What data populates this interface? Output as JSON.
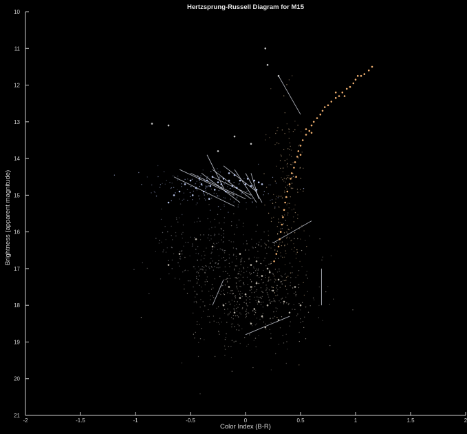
{
  "chart_data": {
    "type": "scatter",
    "title": "Hertzsprung-Russell Diagram for M15",
    "xlabel": "Color Index (B-R)",
    "ylabel": "Brightness (apparent magnitude)",
    "xlim": [
      -2,
      2
    ],
    "ylim": [
      21,
      10
    ],
    "y_inverted": true,
    "x_ticks": [
      "-2",
      "-1.5",
      "-1",
      "-0.5",
      "0",
      "0.5",
      "1",
      "1.5",
      "2"
    ],
    "y_ticks": [
      "10",
      "11",
      "12",
      "13",
      "14",
      "15",
      "16",
      "17",
      "18",
      "19",
      "20",
      "21"
    ],
    "grid": false,
    "colors": {
      "background": "#000000",
      "axis": "#d0d0d0",
      "blue_stars": "#b8c4ea",
      "red_giants": "#f0b070",
      "main_sequence": "#b8b2a8"
    },
    "series": [
      {
        "key": "horizontal_branch",
        "color": "#b8c4ea",
        "points": [
          [
            -0.55,
            14.7
          ],
          [
            -0.5,
            14.6
          ],
          [
            -0.45,
            14.8
          ],
          [
            -0.42,
            14.55
          ],
          [
            -0.4,
            14.7
          ],
          [
            -0.38,
            14.9
          ],
          [
            -0.35,
            14.6
          ],
          [
            -0.32,
            14.75
          ],
          [
            -0.3,
            14.5
          ],
          [
            -0.28,
            14.85
          ],
          [
            -0.25,
            14.65
          ],
          [
            -0.22,
            14.7
          ],
          [
            -0.2,
            14.55
          ],
          [
            -0.18,
            14.9
          ],
          [
            -0.15,
            14.6
          ],
          [
            -0.12,
            14.75
          ],
          [
            -0.1,
            14.45
          ],
          [
            -0.08,
            14.8
          ],
          [
            -0.05,
            14.6
          ],
          [
            0.0,
            14.7
          ],
          [
            0.02,
            14.55
          ],
          [
            0.05,
            14.75
          ],
          [
            0.08,
            14.6
          ],
          [
            0.1,
            14.85
          ],
          [
            -0.6,
            14.9
          ],
          [
            -0.65,
            15.0
          ],
          [
            -0.7,
            15.2
          ],
          [
            -0.48,
            15.0
          ],
          [
            -0.33,
            15.1
          ],
          [
            0.12,
            14.65
          ],
          [
            -0.15,
            14.4
          ],
          [
            0.15,
            14.7
          ]
        ]
      },
      {
        "key": "red_giant_branch",
        "color": "#f0b070",
        "points": [
          [
            1.15,
            11.5
          ],
          [
            1.12,
            11.6
          ],
          [
            1.08,
            11.7
          ],
          [
            1.05,
            11.75
          ],
          [
            1.0,
            11.85
          ],
          [
            0.98,
            11.95
          ],
          [
            0.95,
            12.05
          ],
          [
            0.92,
            12.1
          ],
          [
            0.88,
            12.2
          ],
          [
            0.85,
            12.3
          ],
          [
            0.82,
            12.35
          ],
          [
            0.78,
            12.45
          ],
          [
            0.75,
            12.55
          ],
          [
            0.72,
            12.6
          ],
          [
            0.7,
            12.7
          ],
          [
            0.68,
            12.8
          ],
          [
            0.65,
            12.9
          ],
          [
            0.62,
            13.0
          ],
          [
            0.6,
            13.1
          ],
          [
            0.58,
            13.25
          ],
          [
            0.55,
            13.35
          ],
          [
            0.52,
            13.5
          ],
          [
            0.5,
            13.65
          ],
          [
            0.48,
            13.8
          ],
          [
            0.47,
            13.95
          ],
          [
            0.45,
            14.1
          ],
          [
            0.44,
            14.25
          ],
          [
            0.42,
            14.4
          ],
          [
            0.41,
            14.55
          ],
          [
            0.4,
            14.7
          ],
          [
            0.38,
            14.9
          ],
          [
            0.37,
            15.05
          ],
          [
            0.36,
            15.2
          ],
          [
            0.35,
            15.4
          ],
          [
            0.34,
            15.6
          ],
          [
            0.33,
            15.8
          ],
          [
            0.32,
            16.0
          ],
          [
            0.31,
            16.2
          ],
          [
            0.3,
            16.4
          ],
          [
            0.28,
            16.6
          ],
          [
            0.26,
            16.8
          ],
          [
            0.82,
            12.2
          ],
          [
            0.9,
            12.3
          ],
          [
            1.02,
            11.75
          ],
          [
            0.6,
            13.3
          ],
          [
            0.55,
            13.2
          ],
          [
            0.5,
            13.9
          ],
          [
            0.46,
            14.5
          ]
        ]
      },
      {
        "key": "main_sequence",
        "color": "#b8b2a8",
        "points": [
          [
            0.2,
            17.0
          ],
          [
            0.15,
            17.2
          ],
          [
            0.1,
            17.4
          ],
          [
            0.05,
            17.5
          ],
          [
            0.0,
            17.7
          ],
          [
            -0.05,
            17.8
          ],
          [
            0.12,
            17.9
          ],
          [
            0.2,
            18.0
          ],
          [
            0.25,
            17.6
          ],
          [
            0.3,
            17.3
          ],
          [
            0.08,
            18.1
          ],
          [
            -0.1,
            18.2
          ],
          [
            0.15,
            18.3
          ],
          [
            0.3,
            18.4
          ],
          [
            0.05,
            18.5
          ],
          [
            -0.2,
            18.0
          ],
          [
            0.35,
            17.9
          ],
          [
            0.4,
            18.2
          ],
          [
            0.18,
            18.6
          ],
          [
            -0.15,
            17.5
          ],
          [
            0.22,
            17.1
          ],
          [
            0.05,
            16.9
          ],
          [
            -0.05,
            16.6
          ],
          [
            -0.3,
            16.4
          ],
          [
            -0.45,
            16.2
          ],
          [
            -0.6,
            16.6
          ],
          [
            -0.7,
            16.9
          ],
          [
            0.45,
            17.5
          ],
          [
            0.5,
            18.0
          ],
          [
            0.1,
            16.8
          ]
        ]
      },
      {
        "key": "blue_stragglers",
        "color": "#c8c8c8",
        "points": [
          [
            0.18,
            11.0
          ],
          [
            0.2,
            11.45
          ],
          [
            0.3,
            11.75
          ],
          [
            0.05,
            13.6
          ],
          [
            -0.85,
            13.05
          ],
          [
            -0.7,
            13.1
          ],
          [
            -0.25,
            13.8
          ],
          [
            -0.1,
            13.4
          ]
        ]
      }
    ],
    "streaks": [
      [
        [
          0.3,
          11.75
        ],
        [
          0.5,
          12.8
        ]
      ],
      [
        [
          -0.6,
          14.3
        ],
        [
          -0.1,
          15.0
        ]
      ],
      [
        [
          -0.5,
          14.4
        ],
        [
          0.0,
          15.1
        ]
      ],
      [
        [
          -0.4,
          14.4
        ],
        [
          -0.05,
          15.2
        ]
      ],
      [
        [
          -0.35,
          13.9
        ],
        [
          -0.2,
          14.8
        ]
      ],
      [
        [
          -0.3,
          14.5
        ],
        [
          0.05,
          15.0
        ]
      ],
      [
        [
          -0.3,
          14.3
        ],
        [
          0.05,
          15.1
        ]
      ],
      [
        [
          -0.2,
          14.2
        ],
        [
          0.1,
          14.9
        ]
      ],
      [
        [
          -0.1,
          14.3
        ],
        [
          0.1,
          15.2
        ]
      ],
      [
        [
          0.0,
          14.4
        ],
        [
          0.15,
          15.2
        ]
      ],
      [
        [
          0.05,
          14.4
        ],
        [
          0.12,
          15.1
        ]
      ],
      [
        [
          -0.65,
          14.5
        ],
        [
          -0.1,
          15.3
        ]
      ],
      [
        [
          0.25,
          16.3
        ],
        [
          0.6,
          15.7
        ]
      ],
      [
        [
          -0.3,
          18.0
        ],
        [
          -0.2,
          17.3
        ]
      ],
      [
        [
          0.69,
          17.0
        ],
        [
          0.69,
          18.0
        ]
      ],
      [
        [
          0.0,
          18.8
        ],
        [
          0.4,
          18.3
        ]
      ]
    ]
  }
}
